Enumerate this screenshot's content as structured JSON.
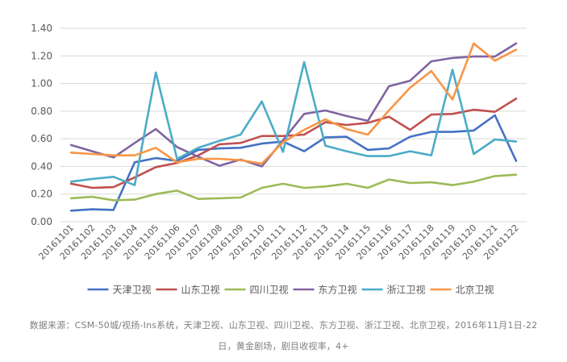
{
  "colors": {
    "axis_text": "#595959",
    "grid": "#d9d9d9",
    "caption_text": "#7f7f7f"
  },
  "caption": {
    "line1": "数据来源：CSM-50城/视扬-Ins系统，天津卫视、山东卫视、四川卫视、东方卫视、浙江卫视、北京卫视，2016年11月1日-22",
    "line2": "日，黄金剧场，剧目收视率，4+"
  },
  "chart_data": {
    "type": "line",
    "title": "",
    "xlabel": "",
    "ylabel": "",
    "ylim": [
      0,
      1.4
    ],
    "yticks": [
      "0.00",
      "0.20",
      "0.40",
      "0.60",
      "0.80",
      "1.00",
      "1.20",
      "1.40"
    ],
    "grid": "horizontal",
    "legend_position": "bottom",
    "categories": [
      "20161101",
      "20161102",
      "20161103",
      "20161104",
      "20161105",
      "20161106",
      "20161107",
      "20161108",
      "20161109",
      "20161110",
      "20161111",
      "20161112",
      "20161113",
      "20161114",
      "20161115",
      "20161116",
      "20161117",
      "20161118",
      "20161119",
      "20161120",
      "20161121",
      "20161122"
    ],
    "series": [
      {
        "name": "天津卫视",
        "color": "#4472c4",
        "values": [
          0.08,
          0.09,
          0.085,
          0.43,
          0.46,
          0.44,
          0.52,
          0.53,
          0.535,
          0.565,
          0.58,
          0.51,
          0.61,
          0.615,
          0.52,
          0.53,
          0.615,
          0.65,
          0.65,
          0.66,
          0.77,
          0.44
        ]
      },
      {
        "name": "山东卫视",
        "color": "#c0504d",
        "values": [
          0.275,
          0.245,
          0.25,
          0.32,
          0.395,
          0.425,
          0.48,
          0.56,
          0.57,
          0.62,
          0.62,
          0.63,
          0.72,
          0.7,
          0.715,
          0.76,
          0.665,
          0.775,
          0.78,
          0.81,
          0.795,
          0.89
        ]
      },
      {
        "name": "四川卫视",
        "color": "#9bbb59",
        "values": [
          0.17,
          0.18,
          0.155,
          0.16,
          0.2,
          0.225,
          0.165,
          0.17,
          0.175,
          0.245,
          0.275,
          0.245,
          0.255,
          0.275,
          0.245,
          0.305,
          0.28,
          0.285,
          0.265,
          0.29,
          0.33,
          0.34
        ]
      },
      {
        "name": "东方卫视",
        "color": "#8064a2",
        "values": [
          0.555,
          0.51,
          0.465,
          0.57,
          0.67,
          0.54,
          0.47,
          0.405,
          0.45,
          0.4,
          0.59,
          0.78,
          0.805,
          0.765,
          0.73,
          0.98,
          1.02,
          1.16,
          1.185,
          1.195,
          1.195,
          1.29
        ]
      },
      {
        "name": "浙江卫视",
        "color": "#4bacc6",
        "values": [
          0.29,
          0.31,
          0.325,
          0.265,
          1.08,
          0.455,
          0.535,
          0.585,
          0.63,
          0.87,
          0.505,
          1.155,
          0.55,
          0.51,
          0.475,
          0.475,
          0.51,
          0.48,
          1.1,
          0.49,
          0.595,
          0.58
        ]
      },
      {
        "name": "北京卫视",
        "color": "#f79646",
        "values": [
          0.5,
          0.49,
          0.48,
          0.48,
          0.535,
          0.43,
          0.455,
          0.455,
          0.445,
          0.42,
          0.575,
          0.665,
          0.74,
          0.67,
          0.63,
          0.805,
          0.97,
          1.09,
          0.885,
          1.29,
          1.165,
          1.245
        ]
      }
    ]
  }
}
